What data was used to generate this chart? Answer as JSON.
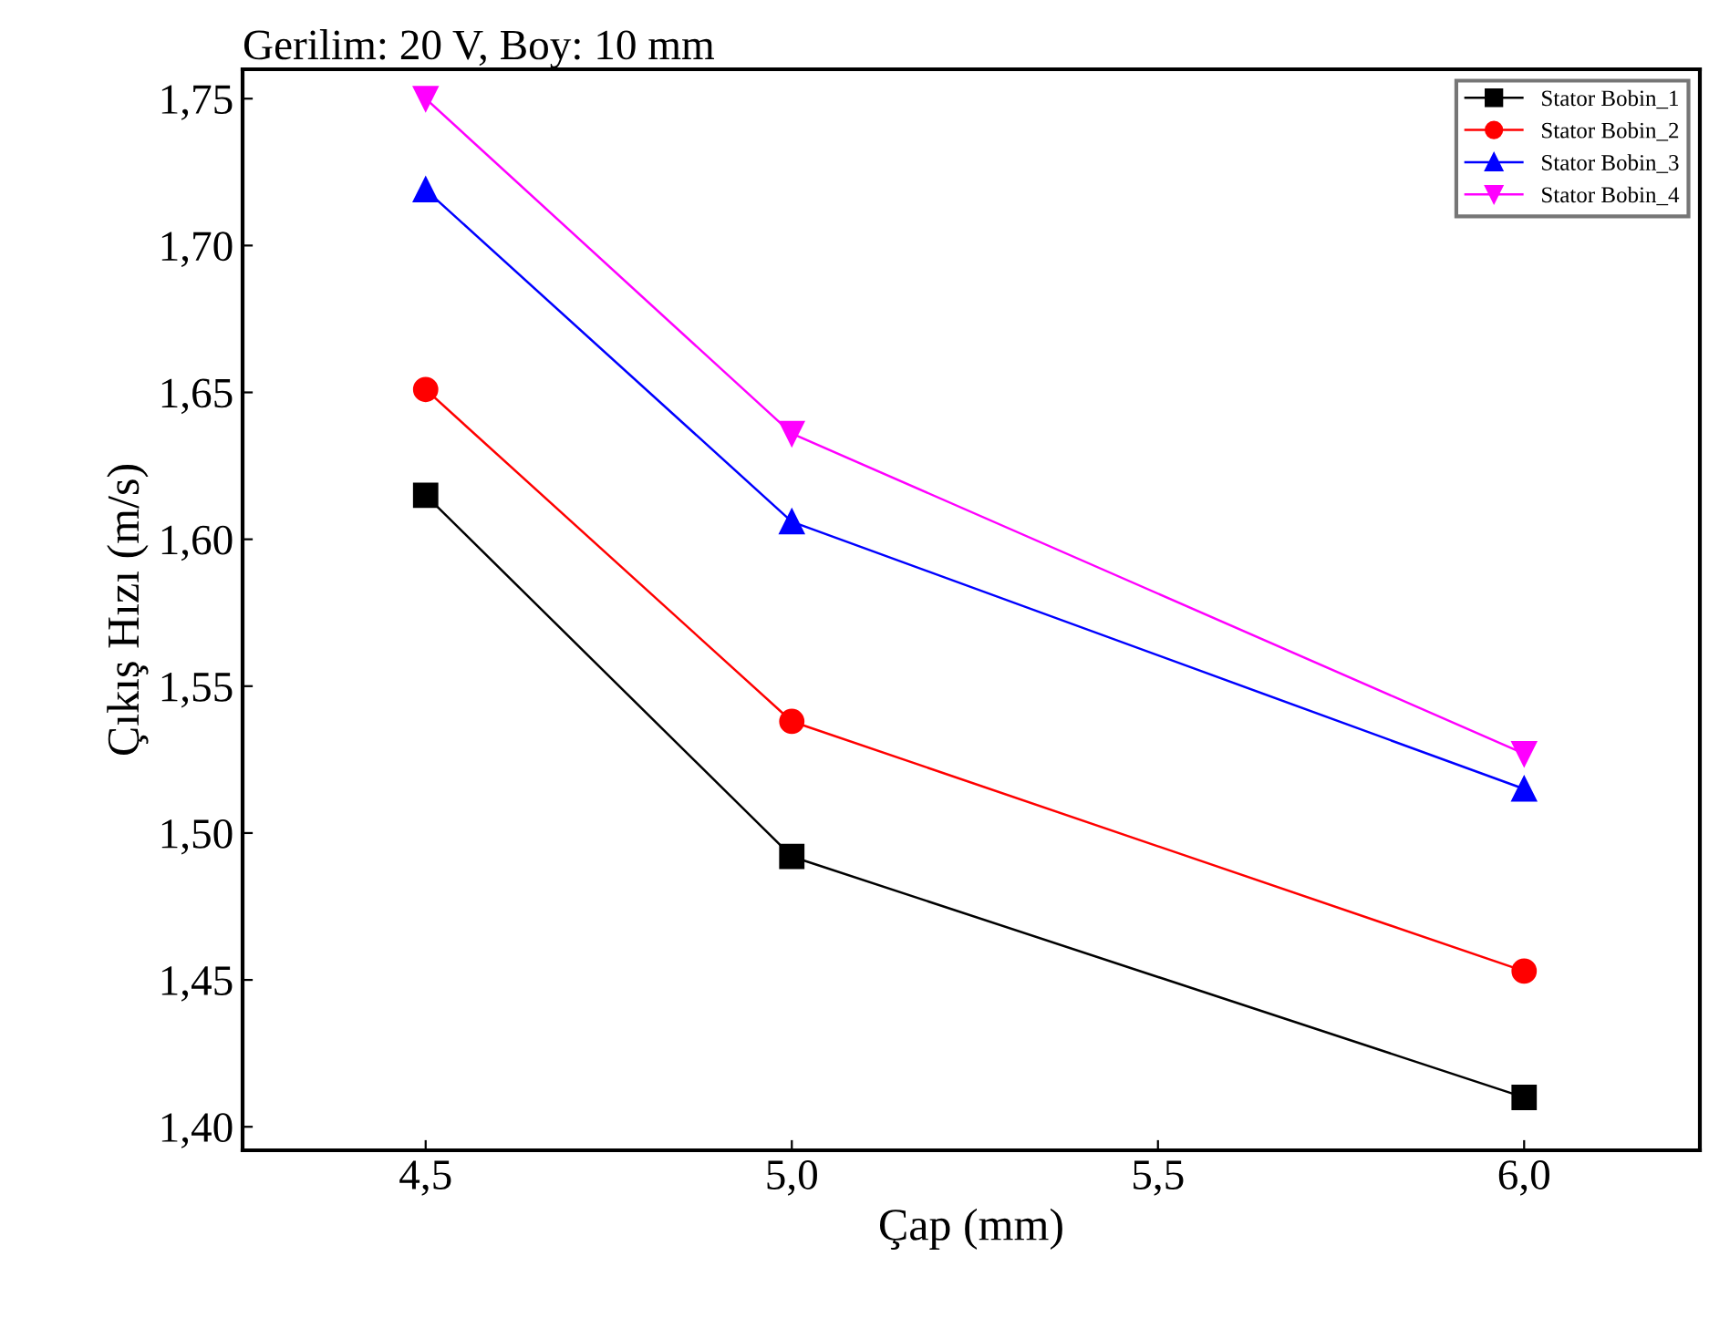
{
  "chart_data": {
    "type": "line",
    "title": "Gerilim: 20 V, Boy: 10 mm",
    "xlabel": "Çap (mm)",
    "ylabel": "Çıkış Hızı (m/s)",
    "x": [
      4.5,
      5.0,
      6.0
    ],
    "series": [
      {
        "name": "Stator Bobin_1",
        "color": "#000000",
        "marker": "square",
        "values": [
          1.615,
          1.492,
          1.41
        ]
      },
      {
        "name": "Stator Bobin_2",
        "color": "#ff0000",
        "marker": "circle",
        "values": [
          1.651,
          1.538,
          1.453
        ]
      },
      {
        "name": "Stator Bobin_3",
        "color": "#0000ff",
        "marker": "triangle",
        "values": [
          1.719,
          1.606,
          1.515
        ]
      },
      {
        "name": "Stator Bobin_4",
        "color": "#ff00ff",
        "marker": "triangle_down",
        "values": [
          1.75,
          1.636,
          1.527
        ]
      }
    ],
    "xlim": [
      4.25,
      6.24
    ],
    "ylim": [
      1.392,
      1.76
    ],
    "xticks": [
      {
        "value": 4.5,
        "label": "4,5"
      },
      {
        "value": 5.0,
        "label": "5,0"
      },
      {
        "value": 5.5,
        "label": "5,5"
      },
      {
        "value": 6.0,
        "label": "6,0"
      }
    ],
    "yticks": [
      {
        "value": 1.4,
        "label": "1,40"
      },
      {
        "value": 1.45,
        "label": "1,45"
      },
      {
        "value": 1.5,
        "label": "1,50"
      },
      {
        "value": 1.55,
        "label": "1,55"
      },
      {
        "value": 1.6,
        "label": "1,60"
      },
      {
        "value": 1.65,
        "label": "1,65"
      },
      {
        "value": 1.7,
        "label": "1,70"
      },
      {
        "value": 1.75,
        "label": "1,75"
      }
    ],
    "grid": false,
    "legend": "top right",
    "line_style": "solid"
  }
}
